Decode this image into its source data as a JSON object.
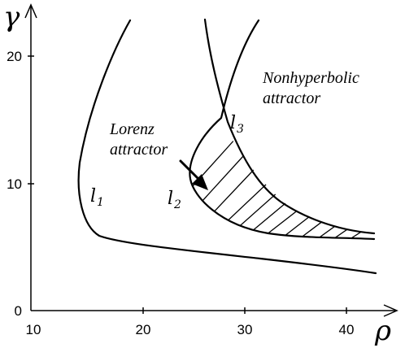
{
  "axes": {
    "x_symbol": "ρ",
    "y_symbol": "γ",
    "x_ticks": [
      "10",
      "20",
      "30",
      "40"
    ],
    "y_ticks": [
      "0",
      "10",
      "20"
    ]
  },
  "regions": {
    "nonhyperbolic_line1": "Nonhyperbolic",
    "nonhyperbolic_line2": "attractor",
    "lorenz_line1": "Lorenz",
    "lorenz_line2": "attractor"
  },
  "curves": {
    "l1": {
      "main": "l",
      "sub": "1"
    },
    "l2": {
      "main": "l",
      "sub": "2"
    },
    "l3": {
      "main": "l",
      "sub": "3"
    }
  },
  "colors": {
    "ink": "#000000",
    "background": "#ffffff"
  },
  "icons": {
    "pointer": "arrow-icon"
  }
}
